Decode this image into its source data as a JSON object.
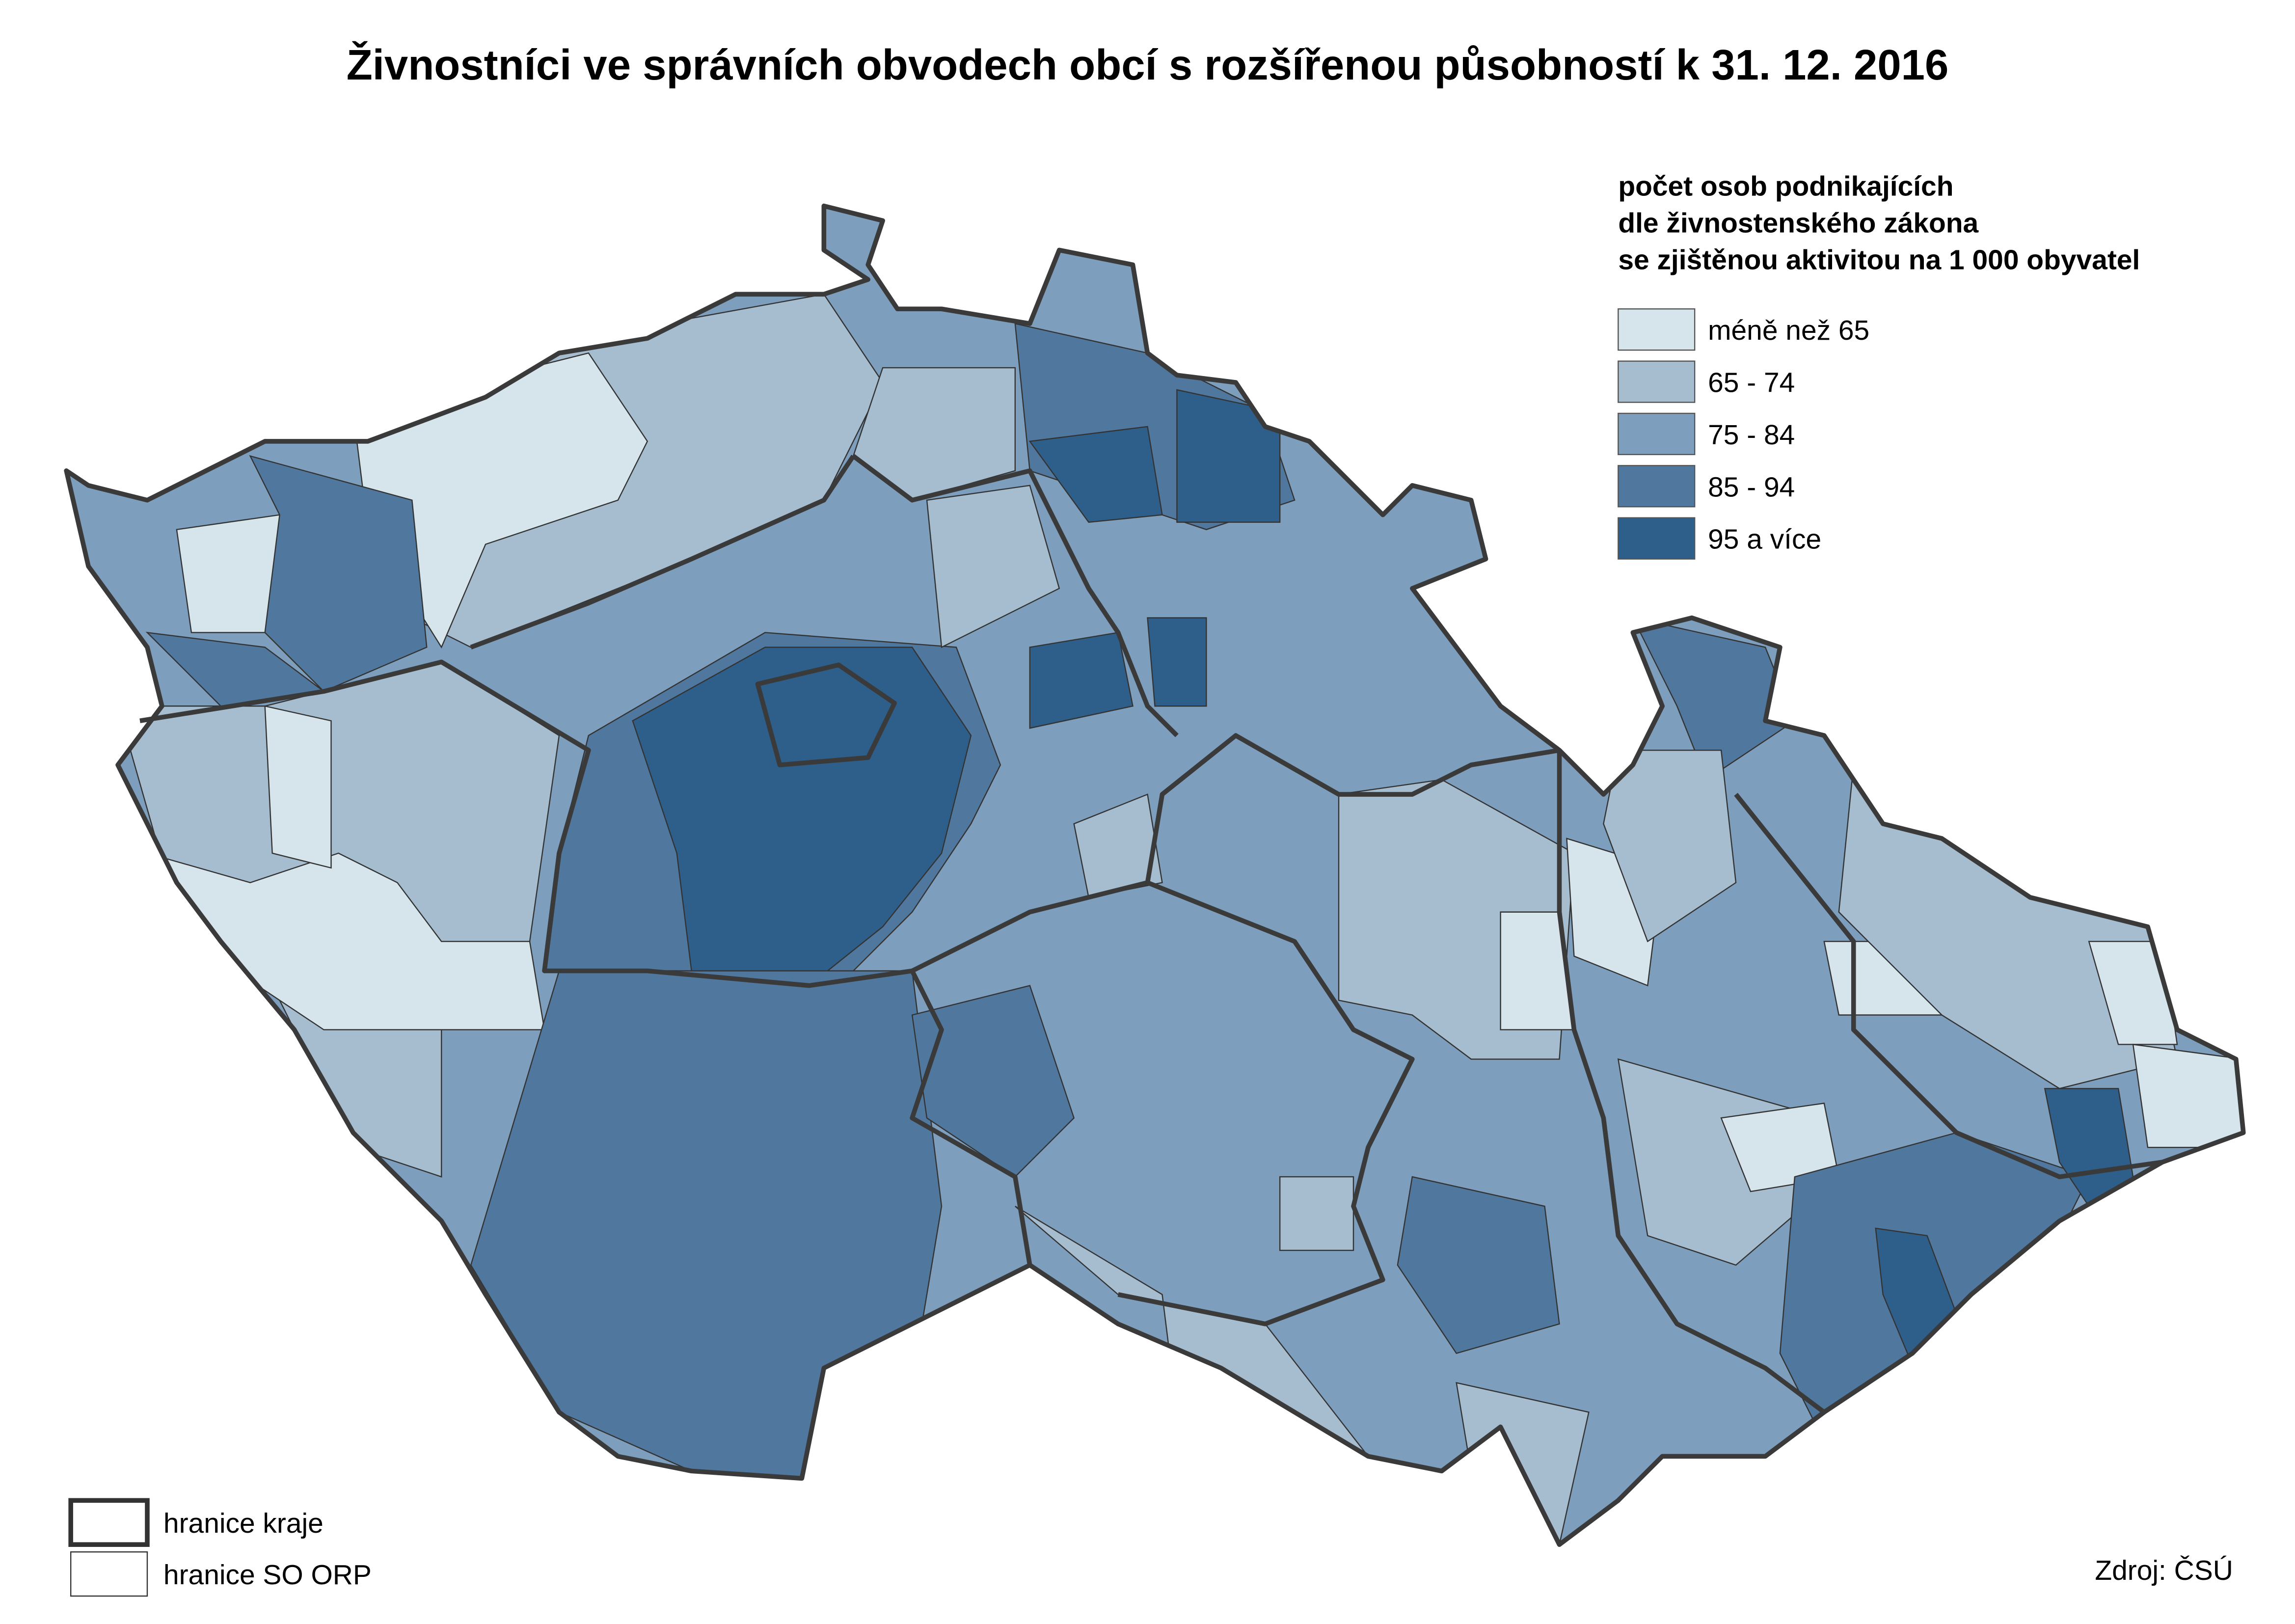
{
  "title": "Živnostníci ve správních obvodech obcí s rozšířenou působností k 31. 12. 2016",
  "legend": {
    "title": [
      "počet osob podnikajících",
      "dle živnostenského zákona",
      "se zjištěnou aktivitou na 1 000 obyvatel"
    ],
    "items": [
      {
        "label": "méně než 65",
        "color": "#d6e5ec"
      },
      {
        "label": "65 - 74",
        "color": "#a6bdd0"
      },
      {
        "label": "75 - 84",
        "color": "#7d9ebc"
      },
      {
        "label": "85 - 94",
        "color": "#50789f"
      },
      {
        "label": "95 a více",
        "color": "#2e5f8a"
      }
    ]
  },
  "borders": [
    {
      "label": "hranice kraje"
    },
    {
      "label": "hranice SO ORP"
    }
  ],
  "source": "Zdroj: ČSÚ"
}
